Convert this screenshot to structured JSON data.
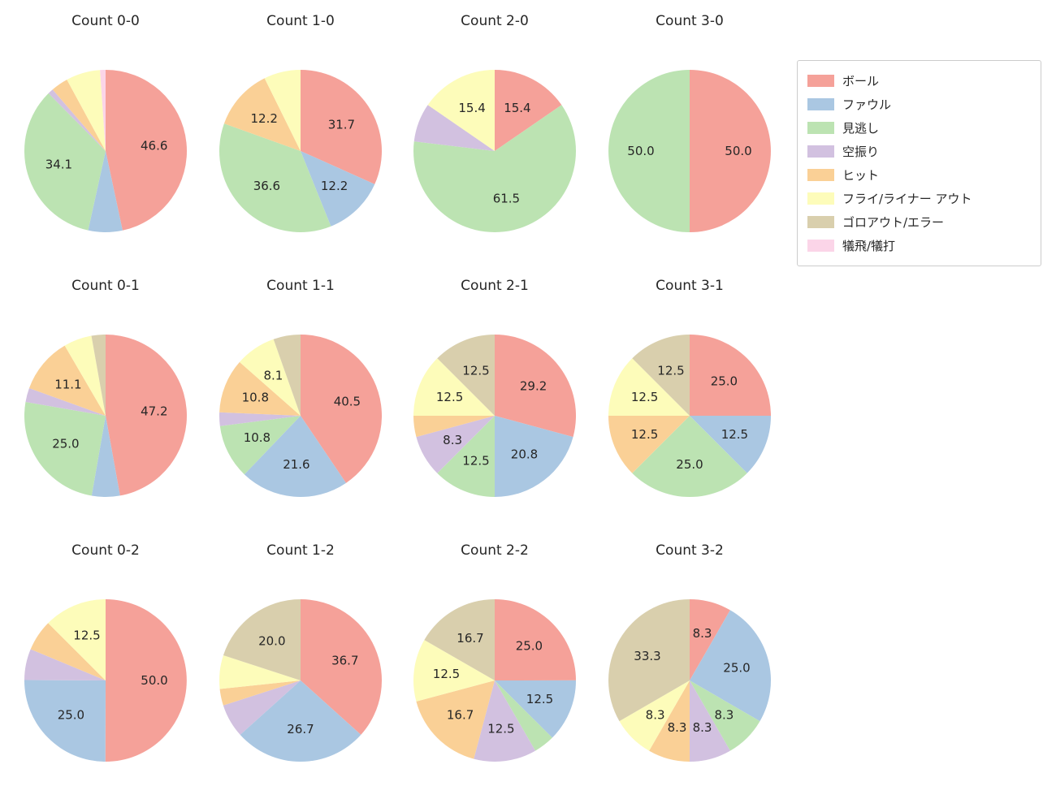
{
  "page": {
    "background": "#ffffff",
    "text_color": "#262626"
  },
  "legend": {
    "items": [
      {
        "label": "ボール",
        "color": "#f5a199"
      },
      {
        "label": "ファウル",
        "color": "#aac7e2"
      },
      {
        "label": "見逃し",
        "color": "#bce3b2"
      },
      {
        "label": "空振り",
        "color": "#d2c1e0"
      },
      {
        "label": "ヒット",
        "color": "#fad096"
      },
      {
        "label": "フライ/ライナー アウト",
        "color": "#fdfcba"
      },
      {
        "label": "ゴロアウト/エラー",
        "color": "#d9cfad"
      },
      {
        "label": "犠飛/犠打",
        "color": "#fbd5e8"
      }
    ]
  },
  "chart_data": [
    {
      "type": "pie",
      "title": "Count 0-0",
      "start": "top",
      "direction": "clockwise",
      "slices": [
        {
          "category": "ボール",
          "value": 46.6,
          "label": "46.6"
        },
        {
          "category": "ファウル",
          "value": 6.8,
          "label": ""
        },
        {
          "category": "見逃し",
          "value": 34.1,
          "label": "34.1"
        },
        {
          "category": "空振り",
          "value": 1.1,
          "label": ""
        },
        {
          "category": "ヒット",
          "value": 3.4,
          "label": ""
        },
        {
          "category": "フライ/ライナー アウト",
          "value": 6.8,
          "label": ""
        },
        {
          "category": "犠飛/犠打",
          "value": 1.1,
          "label": ""
        }
      ]
    },
    {
      "type": "pie",
      "title": "Count 1-0",
      "start": "top",
      "direction": "clockwise",
      "slices": [
        {
          "category": "ボール",
          "value": 31.7,
          "label": "31.7"
        },
        {
          "category": "ファウル",
          "value": 12.2,
          "label": "12.2"
        },
        {
          "category": "見逃し",
          "value": 36.6,
          "label": "36.6"
        },
        {
          "category": "ヒット",
          "value": 12.2,
          "label": "12.2"
        },
        {
          "category": "フライ/ライナー アウト",
          "value": 7.3,
          "label": ""
        }
      ]
    },
    {
      "type": "pie",
      "title": "Count 2-0",
      "start": "top",
      "direction": "clockwise",
      "slices": [
        {
          "category": "ボール",
          "value": 15.4,
          "label": "15.4"
        },
        {
          "category": "見逃し",
          "value": 61.5,
          "label": "61.5"
        },
        {
          "category": "空振り",
          "value": 7.7,
          "label": ""
        },
        {
          "category": "フライ/ライナー アウト",
          "value": 15.4,
          "label": "15.4"
        }
      ]
    },
    {
      "type": "pie",
      "title": "Count 3-0",
      "start": "top",
      "direction": "clockwise",
      "slices": [
        {
          "category": "ボール",
          "value": 50.0,
          "label": "50.0"
        },
        {
          "category": "見逃し",
          "value": 50.0,
          "label": "50.0"
        }
      ]
    },
    {
      "type": "pie",
      "title": "Count 0-1",
      "start": "top",
      "direction": "clockwise",
      "slices": [
        {
          "category": "ボール",
          "value": 47.2,
          "label": "47.2"
        },
        {
          "category": "ファウル",
          "value": 5.6,
          "label": ""
        },
        {
          "category": "見逃し",
          "value": 25.0,
          "label": "25.0"
        },
        {
          "category": "空振り",
          "value": 2.8,
          "label": ""
        },
        {
          "category": "ヒット",
          "value": 11.1,
          "label": "11.1"
        },
        {
          "category": "フライ/ライナー アウト",
          "value": 5.6,
          "label": ""
        },
        {
          "category": "ゴロアウト/エラー",
          "value": 2.8,
          "label": ""
        }
      ]
    },
    {
      "type": "pie",
      "title": "Count 1-1",
      "start": "top",
      "direction": "clockwise",
      "slices": [
        {
          "category": "ボール",
          "value": 40.5,
          "label": "40.5"
        },
        {
          "category": "ファウル",
          "value": 21.6,
          "label": "21.6"
        },
        {
          "category": "見逃し",
          "value": 10.8,
          "label": "10.8"
        },
        {
          "category": "空振り",
          "value": 2.7,
          "label": ""
        },
        {
          "category": "ヒット",
          "value": 10.8,
          "label": "10.8"
        },
        {
          "category": "フライ/ライナー アウト",
          "value": 8.1,
          "label": "8.1"
        },
        {
          "category": "ゴロアウト/エラー",
          "value": 5.4,
          "label": ""
        }
      ]
    },
    {
      "type": "pie",
      "title": "Count 2-1",
      "start": "top",
      "direction": "clockwise",
      "slices": [
        {
          "category": "ボール",
          "value": 29.2,
          "label": "29.2"
        },
        {
          "category": "ファウル",
          "value": 20.8,
          "label": "20.8"
        },
        {
          "category": "見逃し",
          "value": 12.5,
          "label": "12.5"
        },
        {
          "category": "空振り",
          "value": 8.3,
          "label": "8.3"
        },
        {
          "category": "ヒット",
          "value": 4.2,
          "label": ""
        },
        {
          "category": "フライ/ライナー アウト",
          "value": 12.5,
          "label": "12.5"
        },
        {
          "category": "ゴロアウト/エラー",
          "value": 12.5,
          "label": "12.5"
        }
      ]
    },
    {
      "type": "pie",
      "title": "Count 3-1",
      "start": "top",
      "direction": "clockwise",
      "slices": [
        {
          "category": "ボール",
          "value": 25.0,
          "label": "25.0"
        },
        {
          "category": "ファウル",
          "value": 12.5,
          "label": "12.5"
        },
        {
          "category": "見逃し",
          "value": 25.0,
          "label": "25.0"
        },
        {
          "category": "ヒット",
          "value": 12.5,
          "label": "12.5"
        },
        {
          "category": "フライ/ライナー アウト",
          "value": 12.5,
          "label": "12.5"
        },
        {
          "category": "ゴロアウト/エラー",
          "value": 12.5,
          "label": "12.5"
        }
      ]
    },
    {
      "type": "pie",
      "title": "Count 0-2",
      "start": "top",
      "direction": "clockwise",
      "slices": [
        {
          "category": "ボール",
          "value": 50.0,
          "label": "50.0"
        },
        {
          "category": "ファウル",
          "value": 25.0,
          "label": "25.0"
        },
        {
          "category": "空振り",
          "value": 6.2,
          "label": ""
        },
        {
          "category": "ヒット",
          "value": 6.2,
          "label": ""
        },
        {
          "category": "フライ/ライナー アウト",
          "value": 12.5,
          "label": "12.5"
        }
      ]
    },
    {
      "type": "pie",
      "title": "Count 1-2",
      "start": "top",
      "direction": "clockwise",
      "slices": [
        {
          "category": "ボール",
          "value": 36.7,
          "label": "36.7"
        },
        {
          "category": "ファウル",
          "value": 26.7,
          "label": "26.7"
        },
        {
          "category": "空振り",
          "value": 6.7,
          "label": ""
        },
        {
          "category": "ヒット",
          "value": 3.3,
          "label": ""
        },
        {
          "category": "フライ/ライナー アウト",
          "value": 6.7,
          "label": ""
        },
        {
          "category": "ゴロアウト/エラー",
          "value": 20.0,
          "label": "20.0"
        }
      ]
    },
    {
      "type": "pie",
      "title": "Count 2-2",
      "start": "top",
      "direction": "clockwise",
      "slices": [
        {
          "category": "ボール",
          "value": 25.0,
          "label": "25.0"
        },
        {
          "category": "ファウル",
          "value": 12.5,
          "label": "12.5"
        },
        {
          "category": "見逃し",
          "value": 4.2,
          "label": ""
        },
        {
          "category": "空振り",
          "value": 12.5,
          "label": "12.5"
        },
        {
          "category": "ヒット",
          "value": 16.7,
          "label": "16.7"
        },
        {
          "category": "フライ/ライナー アウト",
          "value": 12.5,
          "label": "12.5"
        },
        {
          "category": "ゴロアウト/エラー",
          "value": 16.7,
          "label": "16.7"
        }
      ]
    },
    {
      "type": "pie",
      "title": "Count 3-2",
      "start": "top",
      "direction": "clockwise",
      "slices": [
        {
          "category": "ボール",
          "value": 8.3,
          "label": "8.3"
        },
        {
          "category": "ファウル",
          "value": 25.0,
          "label": "25.0"
        },
        {
          "category": "見逃し",
          "value": 8.3,
          "label": "8.3"
        },
        {
          "category": "空振り",
          "value": 8.3,
          "label": "8.3"
        },
        {
          "category": "ヒット",
          "value": 8.3,
          "label": "8.3"
        },
        {
          "category": "フライ/ライナー アウト",
          "value": 8.3,
          "label": "8.3"
        },
        {
          "category": "ゴロアウト/エラー",
          "value": 33.3,
          "label": "33.3"
        }
      ]
    }
  ]
}
